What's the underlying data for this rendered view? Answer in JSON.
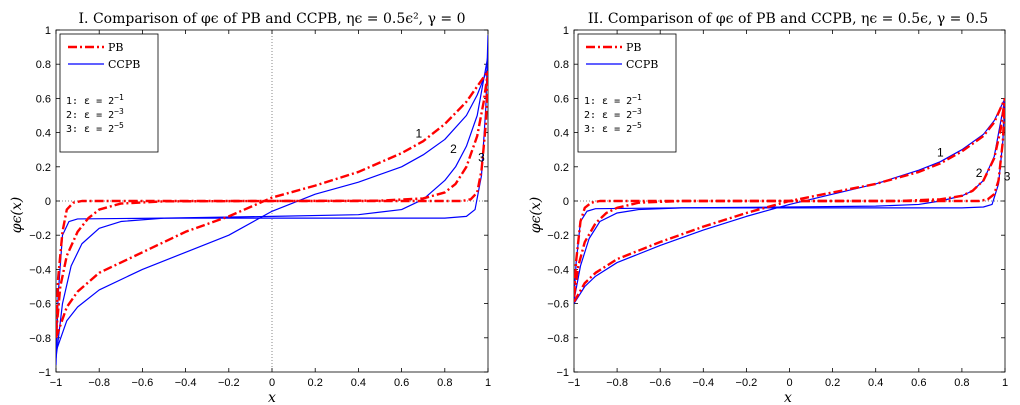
{
  "chart_data": [
    {
      "type": "line",
      "title": "I. Comparison of φϵ of PB and CCPB, ηϵ = 0.5ϵ², γ = 0",
      "xlabel": "x",
      "ylabel": "φϵ(x)",
      "xlim": [
        -1,
        1
      ],
      "ylim": [
        -1,
        1
      ],
      "xticks": [
        -1,
        -0.8,
        -0.6,
        -0.4,
        -0.2,
        0,
        0.2,
        0.4,
        0.6,
        0.8,
        1
      ],
      "xtick_labels": [
        "−1",
        "−0.8",
        "−0.6",
        "−0.4",
        "−0.2",
        "0",
        "0.2",
        "0.4",
        "0.6",
        "0.8",
        "1"
      ],
      "yticks": [
        -1,
        -0.8,
        -0.6,
        -0.4,
        -0.2,
        0,
        0.2,
        0.4,
        0.6,
        0.8,
        1
      ],
      "ytick_labels": [
        "−1",
        "−0.8",
        "−0.6",
        "−0.4",
        "−0.2",
        "0",
        "0.2",
        "0.4",
        "0.6",
        "0.8",
        "1"
      ],
      "reference_lines": {
        "x0": true,
        "y0": true
      },
      "legend": {
        "placement": "top-left",
        "entries": [
          {
            "label": "PB",
            "color": "#ff0000",
            "style": "dash-dot"
          },
          {
            "label": "CCPB",
            "color": "#0000ff",
            "style": "solid"
          }
        ],
        "notes": [
          "1: ε = 2",
          "2: ε = 2",
          "3: ε = 2"
        ],
        "note_exponents": [
          "−1",
          "−3",
          "−5"
        ]
      },
      "curve_labels": [
        {
          "text": "1",
          "x": 0.68,
          "y": 0.37
        },
        {
          "text": "2",
          "x": 0.84,
          "y": 0.28
        },
        {
          "text": "3",
          "x": 0.97,
          "y": 0.23
        }
      ],
      "series": [
        {
          "name": "PB",
          "curve": "1",
          "color": "#ff0000",
          "style": "dash-dot",
          "points": [
            [
              -1,
              -0.8
            ],
            [
              -0.95,
              -0.62
            ],
            [
              -0.9,
              -0.53
            ],
            [
              -0.8,
              -0.42
            ],
            [
              -0.6,
              -0.3
            ],
            [
              -0.4,
              -0.18
            ],
            [
              -0.2,
              -0.09
            ],
            [
              0,
              0.02
            ],
            [
              0.2,
              0.09
            ],
            [
              0.4,
              0.17
            ],
            [
              0.6,
              0.28
            ],
            [
              0.7,
              0.35
            ],
            [
              0.8,
              0.45
            ],
            [
              0.9,
              0.58
            ],
            [
              0.95,
              0.67
            ],
            [
              1,
              0.76
            ]
          ]
        },
        {
          "name": "PB",
          "curve": "2",
          "color": "#ff0000",
          "style": "dash-dot",
          "points": [
            [
              -1,
              -0.78
            ],
            [
              -0.98,
              -0.5
            ],
            [
              -0.95,
              -0.32
            ],
            [
              -0.9,
              -0.18
            ],
            [
              -0.85,
              -0.1
            ],
            [
              -0.8,
              -0.05
            ],
            [
              -0.7,
              -0.015
            ],
            [
              -0.5,
              -0.002
            ],
            [
              0.5,
              0.002
            ],
            [
              0.7,
              0.015
            ],
            [
              0.8,
              0.05
            ],
            [
              0.85,
              0.1
            ],
            [
              0.9,
              0.2
            ],
            [
              0.95,
              0.38
            ],
            [
              0.98,
              0.58
            ],
            [
              1,
              0.76
            ]
          ]
        },
        {
          "name": "PB",
          "curve": "3",
          "color": "#ff0000",
          "style": "dash-dot",
          "points": [
            [
              -1,
              -0.76
            ],
            [
              -0.99,
              -0.45
            ],
            [
              -0.97,
              -0.18
            ],
            [
              -0.95,
              -0.05
            ],
            [
              -0.92,
              -0.01
            ],
            [
              -0.88,
              0
            ],
            [
              0.88,
              0
            ],
            [
              0.92,
              0.01
            ],
            [
              0.95,
              0.05
            ],
            [
              0.97,
              0.18
            ],
            [
              0.99,
              0.45
            ],
            [
              1,
              0.76
            ]
          ]
        },
        {
          "name": "CCPB",
          "curve": "1",
          "color": "#0000ff",
          "style": "solid",
          "points": [
            [
              -1,
              -0.88
            ],
            [
              -0.95,
              -0.7
            ],
            [
              -0.9,
              -0.62
            ],
            [
              -0.8,
              -0.52
            ],
            [
              -0.6,
              -0.4
            ],
            [
              -0.4,
              -0.3
            ],
            [
              -0.2,
              -0.2
            ],
            [
              0,
              -0.06
            ],
            [
              0.2,
              0.04
            ],
            [
              0.4,
              0.11
            ],
            [
              0.6,
              0.2
            ],
            [
              0.7,
              0.27
            ],
            [
              0.8,
              0.36
            ],
            [
              0.9,
              0.5
            ],
            [
              0.95,
              0.62
            ],
            [
              1,
              0.78
            ]
          ]
        },
        {
          "name": "CCPB",
          "curve": "2",
          "color": "#0000ff",
          "style": "solid",
          "points": [
            [
              -1,
              -0.92
            ],
            [
              -0.97,
              -0.6
            ],
            [
              -0.93,
              -0.38
            ],
            [
              -0.88,
              -0.25
            ],
            [
              -0.8,
              -0.16
            ],
            [
              -0.7,
              -0.12
            ],
            [
              -0.5,
              -0.1
            ],
            [
              0,
              -0.09
            ],
            [
              0.4,
              -0.08
            ],
            [
              0.6,
              -0.05
            ],
            [
              0.7,
              0.01
            ],
            [
              0.8,
              0.12
            ],
            [
              0.85,
              0.2
            ],
            [
              0.9,
              0.32
            ],
            [
              0.95,
              0.5
            ],
            [
              1,
              0.85
            ]
          ]
        },
        {
          "name": "CCPB",
          "curve": "3",
          "color": "#0000ff",
          "style": "solid",
          "points": [
            [
              -1,
              -0.96
            ],
            [
              -0.99,
              -0.55
            ],
            [
              -0.97,
              -0.2
            ],
            [
              -0.94,
              -0.12
            ],
            [
              -0.9,
              -0.105
            ],
            [
              -0.5,
              -0.1
            ],
            [
              0.8,
              -0.1
            ],
            [
              0.9,
              -0.09
            ],
            [
              0.94,
              -0.05
            ],
            [
              0.97,
              0.15
            ],
            [
              0.99,
              0.55
            ],
            [
              1,
              0.97
            ]
          ]
        }
      ]
    },
    {
      "type": "line",
      "title": "II. Comparison of φϵ of PB and CCPB, ηϵ = 0.5ϵ, γ = 0.5",
      "xlabel": "x",
      "ylabel": "φϵ(x)",
      "xlim": [
        -1,
        1
      ],
      "ylim": [
        -1,
        1
      ],
      "xticks": [
        -1,
        -0.8,
        -0.6,
        -0.4,
        -0.2,
        0,
        0.2,
        0.4,
        0.6,
        0.8,
        1
      ],
      "xtick_labels": [
        "−1",
        "−0.8",
        "−0.6",
        "−0.4",
        "−0.2",
        "0",
        "0.2",
        "0.4",
        "0.6",
        "0.8",
        "1"
      ],
      "yticks": [
        -1,
        -0.8,
        -0.6,
        -0.4,
        -0.2,
        0,
        0.2,
        0.4,
        0.6,
        0.8,
        1
      ],
      "ytick_labels": [
        "−1",
        "−0.8",
        "−0.6",
        "−0.4",
        "−0.2",
        "0",
        "0.2",
        "0.4",
        "0.6",
        "0.8",
        "1"
      ],
      "reference_lines": {
        "x0": false,
        "y0": true
      },
      "legend": {
        "placement": "top-left",
        "entries": [
          {
            "label": "PB",
            "color": "#ff0000",
            "style": "dash-dot"
          },
          {
            "label": "CCPB",
            "color": "#0000ff",
            "style": "solid"
          }
        ],
        "notes": [
          "1: ε = 2",
          "2: ε = 2",
          "3: ε = 2"
        ],
        "note_exponents": [
          "−1",
          "−3",
          "−5"
        ]
      },
      "curve_labels": [
        {
          "text": "1",
          "x": 0.7,
          "y": 0.26
        },
        {
          "text": "2",
          "x": 0.88,
          "y": 0.14
        },
        {
          "text": "3",
          "x": 1.01,
          "y": 0.12
        }
      ],
      "series": [
        {
          "name": "PB",
          "curve": "1",
          "color": "#ff0000",
          "style": "dash-dot",
          "points": [
            [
              -1,
              -0.59
            ],
            [
              -0.95,
              -0.48
            ],
            [
              -0.9,
              -0.42
            ],
            [
              -0.8,
              -0.34
            ],
            [
              -0.6,
              -0.24
            ],
            [
              -0.4,
              -0.15
            ],
            [
              -0.2,
              -0.07
            ],
            [
              0,
              0
            ],
            [
              0.2,
              0.05
            ],
            [
              0.4,
              0.1
            ],
            [
              0.6,
              0.17
            ],
            [
              0.7,
              0.22
            ],
            [
              0.8,
              0.29
            ],
            [
              0.9,
              0.38
            ],
            [
              0.95,
              0.46
            ],
            [
              1,
              0.6
            ]
          ]
        },
        {
          "name": "PB",
          "curve": "2",
          "color": "#ff0000",
          "style": "dash-dot",
          "points": [
            [
              -1,
              -0.56
            ],
            [
              -0.98,
              -0.38
            ],
            [
              -0.95,
              -0.24
            ],
            [
              -0.9,
              -0.13
            ],
            [
              -0.85,
              -0.07
            ],
            [
              -0.8,
              -0.04
            ],
            [
              -0.7,
              -0.01
            ],
            [
              -0.5,
              0
            ],
            [
              0.5,
              0
            ],
            [
              0.7,
              0.01
            ],
            [
              0.8,
              0.03
            ],
            [
              0.85,
              0.06
            ],
            [
              0.9,
              0.12
            ],
            [
              0.95,
              0.25
            ],
            [
              0.98,
              0.42
            ],
            [
              1,
              0.6
            ]
          ]
        },
        {
          "name": "PB",
          "curve": "3",
          "color": "#ff0000",
          "style": "dash-dot",
          "points": [
            [
              -1,
              -0.55
            ],
            [
              -0.99,
              -0.35
            ],
            [
              -0.97,
              -0.12
            ],
            [
              -0.95,
              -0.04
            ],
            [
              -0.92,
              -0.01
            ],
            [
              -0.88,
              0
            ],
            [
              0.88,
              0
            ],
            [
              0.92,
              0.01
            ],
            [
              0.95,
              0.04
            ],
            [
              0.97,
              0.12
            ],
            [
              0.99,
              0.35
            ],
            [
              1,
              0.6
            ]
          ]
        },
        {
          "name": "CCPB",
          "curve": "1",
          "color": "#0000ff",
          "style": "solid",
          "points": [
            [
              -1,
              -0.6
            ],
            [
              -0.95,
              -0.5
            ],
            [
              -0.9,
              -0.44
            ],
            [
              -0.8,
              -0.36
            ],
            [
              -0.6,
              -0.26
            ],
            [
              -0.4,
              -0.17
            ],
            [
              -0.2,
              -0.09
            ],
            [
              0,
              -0.02
            ],
            [
              0.2,
              0.04
            ],
            [
              0.4,
              0.1
            ],
            [
              0.6,
              0.18
            ],
            [
              0.7,
              0.23
            ],
            [
              0.8,
              0.3
            ],
            [
              0.9,
              0.39
            ],
            [
              0.95,
              0.47
            ],
            [
              1,
              0.6
            ]
          ]
        },
        {
          "name": "CCPB",
          "curve": "2",
          "color": "#0000ff",
          "style": "solid",
          "points": [
            [
              -1,
              -0.58
            ],
            [
              -0.97,
              -0.38
            ],
            [
              -0.93,
              -0.22
            ],
            [
              -0.88,
              -0.12
            ],
            [
              -0.8,
              -0.07
            ],
            [
              -0.7,
              -0.05
            ],
            [
              -0.5,
              -0.04
            ],
            [
              0,
              -0.035
            ],
            [
              0.4,
              -0.03
            ],
            [
              0.6,
              -0.02
            ],
            [
              0.7,
              0
            ],
            [
              0.8,
              0.03
            ],
            [
              0.85,
              0.06
            ],
            [
              0.9,
              0.12
            ],
            [
              0.95,
              0.26
            ],
            [
              1,
              0.6
            ]
          ]
        },
        {
          "name": "CCPB",
          "curve": "3",
          "color": "#0000ff",
          "style": "solid",
          "points": [
            [
              -1,
              -0.57
            ],
            [
              -0.99,
              -0.36
            ],
            [
              -0.97,
              -0.12
            ],
            [
              -0.94,
              -0.06
            ],
            [
              -0.9,
              -0.045
            ],
            [
              -0.5,
              -0.04
            ],
            [
              0.8,
              -0.04
            ],
            [
              0.9,
              -0.035
            ],
            [
              0.94,
              -0.02
            ],
            [
              0.97,
              0.1
            ],
            [
              0.99,
              0.35
            ],
            [
              1,
              0.6
            ]
          ]
        }
      ]
    }
  ]
}
